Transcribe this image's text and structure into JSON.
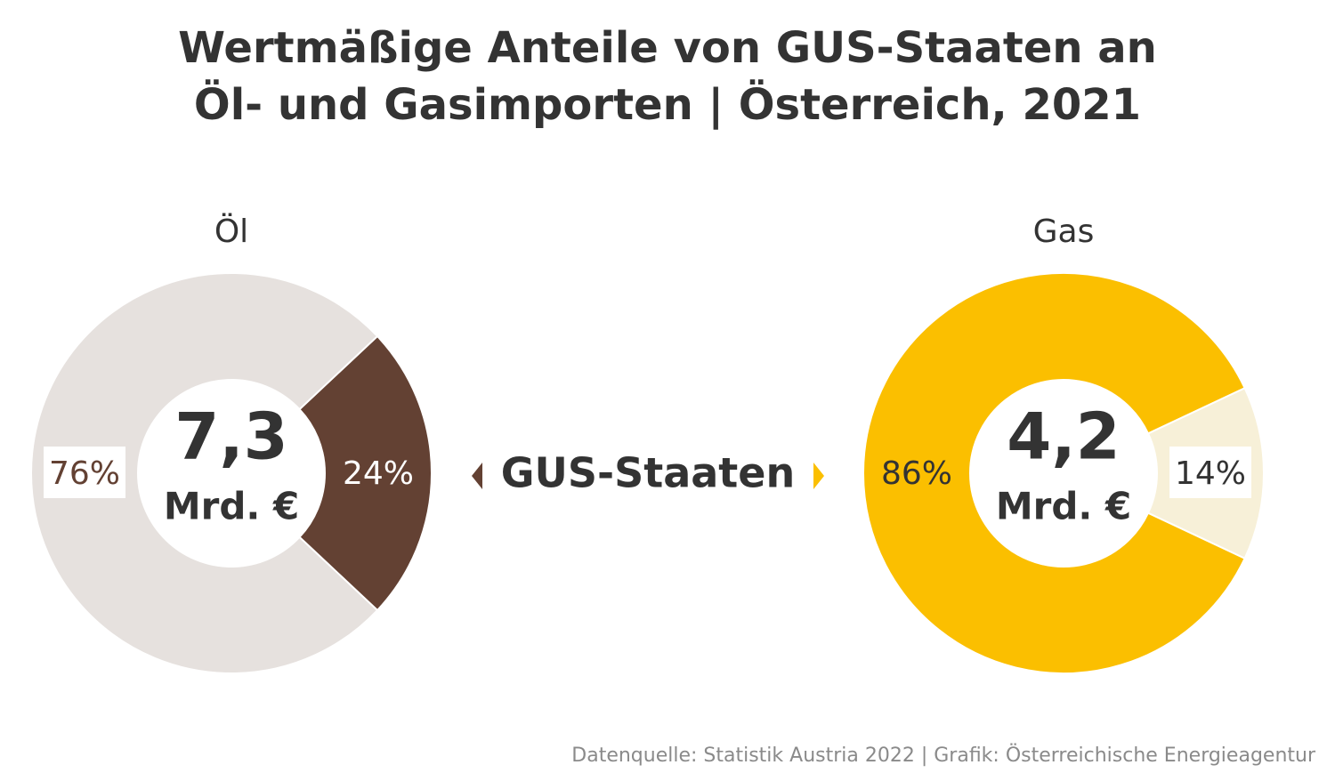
{
  "title": "Wertmäßige Anteile von GUS-Staaten an Öl- und Gasimporten | Österreich, 2021",
  "legend_label": "GUS-Staaten",
  "source": "Datenquelle: Statistik Austria 2022 | Grafik: Österreichische Energieagentur",
  "chart_data": [
    {
      "type": "pie",
      "title": "Öl",
      "center_value": "7,3",
      "center_unit": "Mrd. €",
      "values": [
        24,
        76
      ],
      "value_labels": [
        "24%",
        "76%"
      ],
      "colors": [
        "#634133",
        "#e6e1de"
      ],
      "label_colors": [
        "#ffffff",
        "#634133"
      ],
      "label_boxes": [
        false,
        true
      ]
    },
    {
      "type": "pie",
      "title": "Gas",
      "center_value": "4,2",
      "center_unit": "Mrd. €",
      "values": [
        14,
        86
      ],
      "value_labels": [
        "14%",
        "86%"
      ],
      "colors": [
        "#f7f0d8",
        "#fbbf00"
      ],
      "label_colors": [
        "#333333",
        "#333333"
      ],
      "label_boxes": [
        true,
        false
      ]
    }
  ]
}
